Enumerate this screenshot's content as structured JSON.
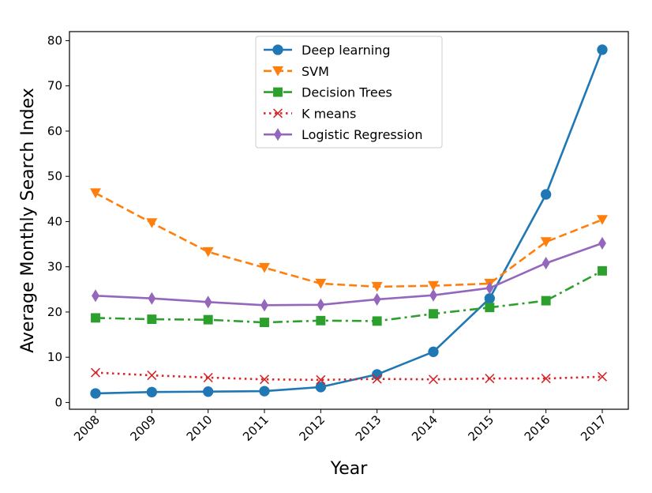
{
  "chart_data": {
    "type": "line",
    "title": "",
    "xlabel": "Year",
    "ylabel": "Average Monthly Search Index",
    "x": [
      "2008",
      "2009",
      "2010",
      "2011",
      "2012",
      "2013",
      "2014",
      "2015",
      "2016",
      "2017"
    ],
    "ylim": [
      -1.5,
      82
    ],
    "yticks": [
      0,
      10,
      20,
      30,
      40,
      50,
      60,
      70,
      80
    ],
    "grid": false,
    "legend_position": "top-center",
    "series": [
      {
        "name": "Deep learning",
        "color": "#1f77b4",
        "linestyle": "solid",
        "marker": "circle",
        "values": [
          2.0,
          2.3,
          2.4,
          2.5,
          3.4,
          6.2,
          11.2,
          23.0,
          46.0,
          78.0
        ]
      },
      {
        "name": "SVM",
        "color": "#ff7f0e",
        "linestyle": "dashed",
        "marker": "triangle-down",
        "values": [
          46.3,
          39.7,
          33.3,
          29.8,
          26.3,
          25.6,
          25.8,
          26.3,
          35.5,
          40.4
        ]
      },
      {
        "name": "Decision Trees",
        "color": "#2ca02c",
        "linestyle": "dashdot",
        "marker": "square",
        "values": [
          18.7,
          18.4,
          18.3,
          17.7,
          18.1,
          18.0,
          19.6,
          21.0,
          22.5,
          29.1
        ]
      },
      {
        "name": "K means",
        "color": "#d62728",
        "linestyle": "dotted",
        "marker": "x",
        "values": [
          6.6,
          6.0,
          5.5,
          5.1,
          5.0,
          5.2,
          5.1,
          5.3,
          5.3,
          5.7
        ]
      },
      {
        "name": "Logistic Regression",
        "color": "#9467bd",
        "linestyle": "solid",
        "marker": "diamond",
        "values": [
          23.6,
          23.0,
          22.2,
          21.5,
          21.6,
          22.8,
          23.7,
          25.3,
          30.8,
          35.2
        ]
      }
    ]
  }
}
